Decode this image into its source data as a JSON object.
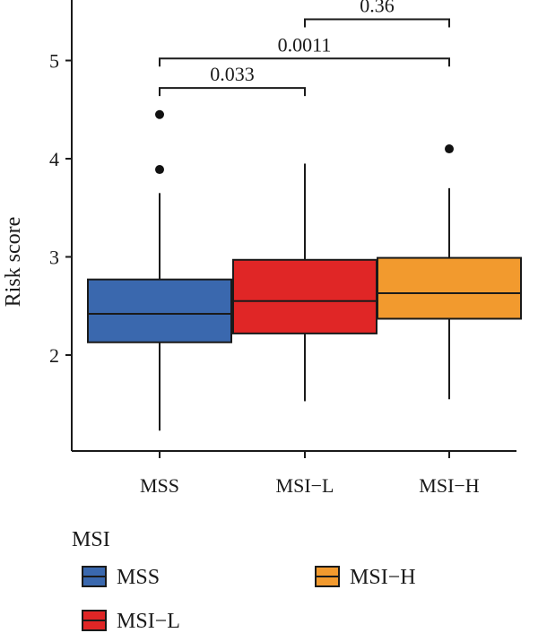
{
  "chart_data": {
    "type": "box",
    "ylabel": "Risk score",
    "xlabel": "",
    "ylim": [
      1.0,
      5.5
    ],
    "yticks": [
      2,
      3,
      4,
      5
    ],
    "categories": [
      "MSS",
      "MSI−L",
      "MSI−H"
    ],
    "boxes": [
      {
        "name": "MSS",
        "color": "#3a68ae",
        "whisker_low": 1.23,
        "q1": 2.13,
        "median": 2.42,
        "q3": 2.77,
        "whisker_high": 3.65,
        "outliers": [
          3.89,
          4.45
        ]
      },
      {
        "name": "MSI−L",
        "color": "#e02626",
        "whisker_low": 1.53,
        "q1": 2.22,
        "median": 2.55,
        "q3": 2.97,
        "whisker_high": 3.95,
        "outliers": []
      },
      {
        "name": "MSI−H",
        "color": "#f29a2e",
        "whisker_low": 1.55,
        "q1": 2.37,
        "median": 2.63,
        "q3": 2.99,
        "whisker_high": 3.7,
        "outliers": [
          4.1
        ]
      }
    ],
    "comparisons": [
      {
        "from": 0,
        "to": 1,
        "label": "0.033",
        "y": 4.72
      },
      {
        "from": 0,
        "to": 2,
        "label": "0.0011",
        "y": 5.02
      },
      {
        "from": 1,
        "to": 2,
        "label": "0.36",
        "y": 5.42
      }
    ],
    "legend": {
      "title": "MSI",
      "placement": "bottom",
      "items": [
        "MSS",
        "MSI−L",
        "MSI−H"
      ]
    }
  }
}
